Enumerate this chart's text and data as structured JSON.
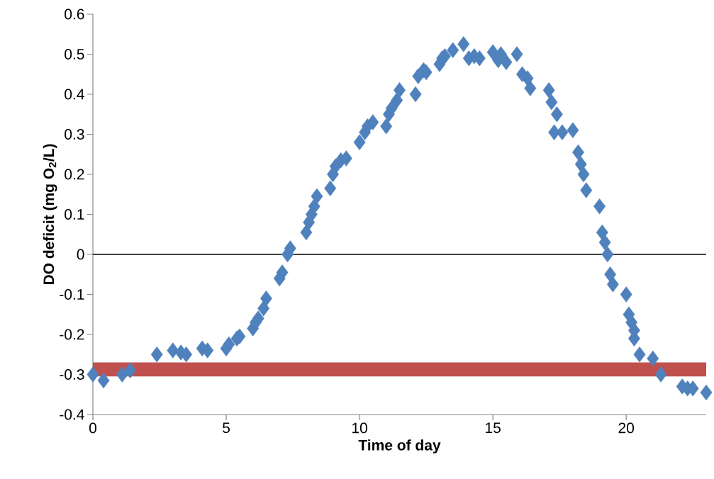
{
  "chart_data": {
    "type": "scatter",
    "xlabel": "Time of day",
    "ylabel": "DO deficit (mg O$_{2}$/L)",
    "series": [
      {
        "color": "#4f81bd",
        "x": [
          0,
          0.4,
          1.1,
          1.4,
          2.4,
          3.0,
          3.3,
          3.5,
          4.1,
          4.3,
          5.0,
          5.1,
          5.4,
          5.5,
          6.0,
          6.1,
          6.2,
          6.4,
          6.5,
          7.0,
          7.1,
          7.3,
          7.4,
          8.0,
          8.1,
          8.2,
          8.3,
          8.4,
          8.9,
          9.0,
          9.1,
          9.3,
          9.5,
          10.0,
          10.2,
          10.3,
          10.5,
          11.0,
          11.1,
          11.2,
          11.4,
          11.5,
          12.1,
          12.2,
          12.4,
          12.5,
          13.0,
          13.1,
          13.2,
          13.5,
          13.9,
          14.1,
          14.3,
          14.5,
          15.0,
          15.2,
          15.3,
          15.5,
          15.9,
          16.1,
          16.3,
          16.4,
          17.1,
          17.2,
          17.4,
          17.3,
          17.6,
          18.0,
          18.2,
          18.3,
          18.4,
          18.5,
          19.0,
          19.1,
          19.2,
          19.3,
          19.4,
          19.5,
          20.0,
          20.1,
          20.2,
          20.3,
          20.3,
          20.5,
          21.0,
          21.3,
          22.1,
          22.3,
          22.5,
          23.0
        ],
        "values": [
          -0.3,
          -0.315,
          -0.3,
          -0.29,
          -0.25,
          -0.24,
          -0.245,
          -0.25,
          -0.235,
          -0.24,
          -0.235,
          -0.225,
          -0.21,
          -0.205,
          -0.185,
          -0.17,
          -0.16,
          -0.135,
          -0.11,
          -0.06,
          -0.045,
          0.0,
          0.015,
          0.055,
          0.08,
          0.1,
          0.12,
          0.145,
          0.165,
          0.2,
          0.22,
          0.235,
          0.24,
          0.28,
          0.305,
          0.32,
          0.33,
          0.32,
          0.35,
          0.365,
          0.385,
          0.41,
          0.4,
          0.445,
          0.46,
          0.455,
          0.475,
          0.49,
          0.495,
          0.51,
          0.525,
          0.49,
          0.495,
          0.49,
          0.505,
          0.485,
          0.5,
          0.48,
          0.5,
          0.45,
          0.44,
          0.415,
          0.41,
          0.38,
          0.35,
          0.305,
          0.305,
          0.31,
          0.255,
          0.225,
          0.2,
          0.16,
          0.12,
          0.055,
          0.03,
          0.0,
          -0.05,
          -0.075,
          -0.1,
          -0.15,
          -0.17,
          -0.19,
          -0.21,
          -0.25,
          -0.26,
          -0.3,
          -0.33,
          -0.335,
          -0.335,
          -0.345
        ]
      }
    ],
    "marker": "diamond",
    "xlim": [
      0,
      23
    ],
    "xticks": [
      0,
      5,
      10,
      15,
      20
    ],
    "ylim": [
      -0.4,
      0.6
    ],
    "yticks": [
      -0.4,
      -0.3,
      -0.2,
      -0.1,
      0,
      0.1,
      0.2,
      0.3,
      0.4,
      0.5,
      0.6
    ],
    "ref_lines": [
      {
        "axis": "y",
        "value": 0,
        "color": "#000000"
      }
    ],
    "bands": [
      {
        "axis": "y",
        "from": -0.305,
        "to": -0.27,
        "color": "#c0504d"
      }
    ]
  }
}
